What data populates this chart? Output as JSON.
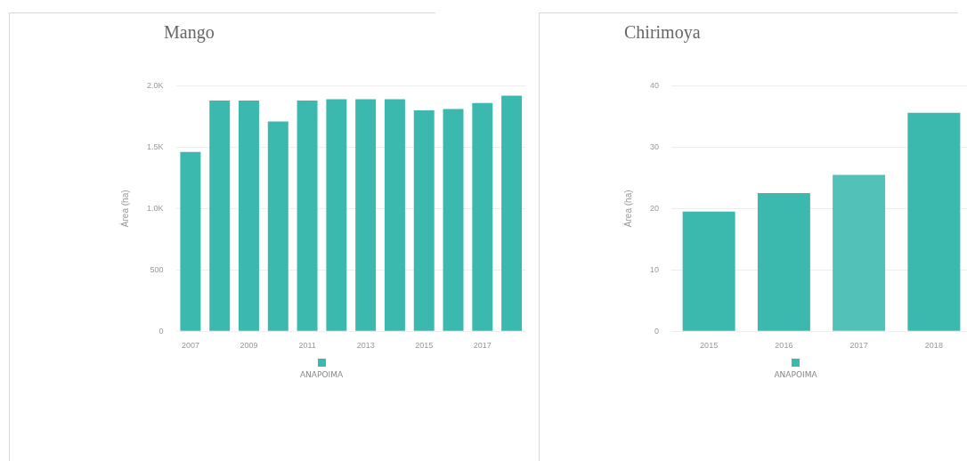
{
  "chart_data": [
    {
      "type": "bar",
      "title": "Mango",
      "ylabel": "Área (ha)",
      "categories": [
        "2007",
        null,
        "2009",
        null,
        "2011",
        null,
        "2013",
        null,
        "2015",
        null,
        "2017",
        null
      ],
      "series": [
        {
          "name": "ANAPOIMA",
          "color": "#3bb9ae",
          "values": [
            1460,
            1880,
            1880,
            1710,
            1880,
            1890,
            1890,
            1890,
            1800,
            1810,
            1860,
            1920
          ]
        }
      ],
      "ylim": [
        0,
        2000
      ],
      "yticks": [
        0,
        500,
        {
          "value": 1000,
          "label": "1.0K"
        },
        {
          "value": 1500,
          "label": "1.5K"
        },
        {
          "value": 2000,
          "label": "2.0K"
        }
      ],
      "grid": "y",
      "legend": "bottom"
    },
    {
      "type": "bar",
      "title": "Chirimoya",
      "ylabel": "Área (ha)",
      "categories": [
        "2015",
        "2016",
        "2017",
        "2018"
      ],
      "series": [
        {
          "name": "ANAPOIMA",
          "color": "#3bb9ae",
          "colors": [
            "#3bb9ae",
            "#3bb9ae",
            "#52c2b8",
            "#3bb9ae"
          ],
          "values": [
            19.5,
            22.5,
            25.5,
            35.6
          ]
        }
      ],
      "ylim": [
        0,
        40
      ],
      "yticks": [
        0,
        10,
        20,
        30,
        40
      ],
      "grid": "y",
      "legend": "bottom"
    }
  ]
}
